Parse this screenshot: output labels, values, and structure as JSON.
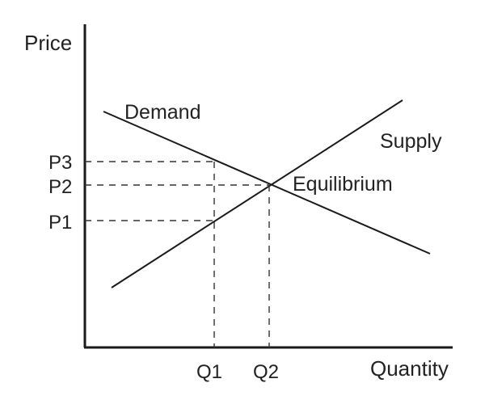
{
  "axes": {
    "y_title": "Price",
    "x_title": "Quantity"
  },
  "curves": {
    "demand_label": "Demand",
    "supply_label": "Supply"
  },
  "equilibrium": {
    "label": "Equilibrium"
  },
  "price_ticks": {
    "p3": "P3",
    "p2": "P2",
    "p1": "P1"
  },
  "quantity_ticks": {
    "q1": "Q1",
    "q2": "Q2"
  }
}
